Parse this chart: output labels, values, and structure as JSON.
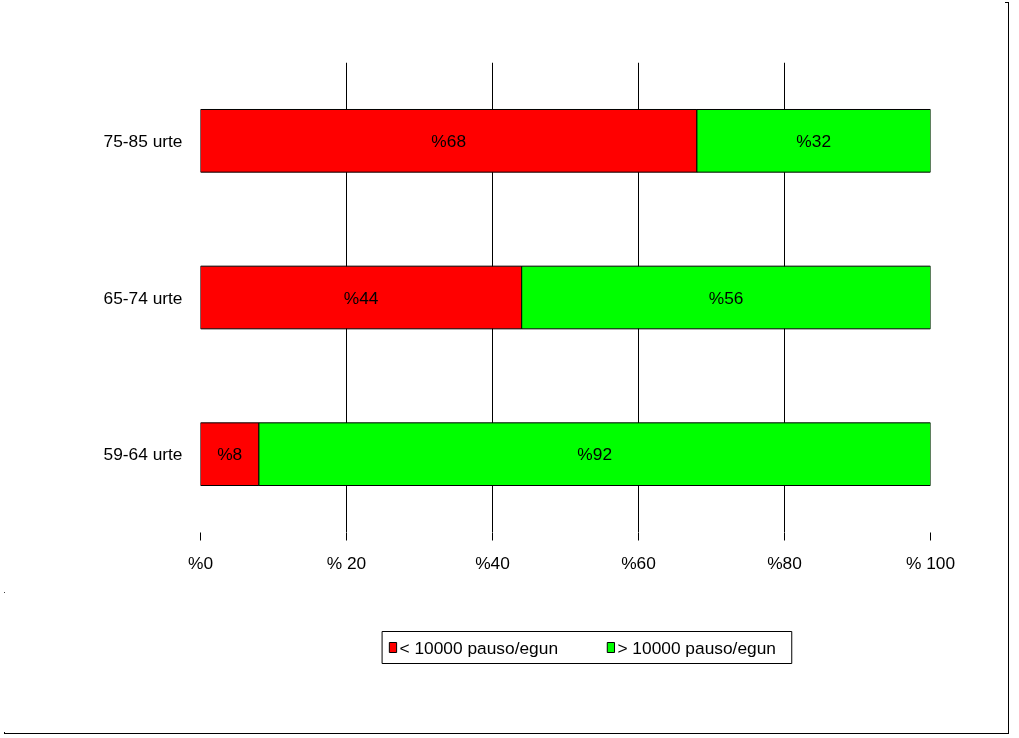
{
  "chart_data": {
    "type": "bar",
    "orientation": "horizontal",
    "stacked": true,
    "categories": [
      "75-85 urte",
      "65-74 urte",
      "59-64 urte"
    ],
    "series": [
      {
        "name": "< 10000 pauso/egun",
        "color": "#ff0000",
        "values": [
          68,
          44,
          8
        ],
        "value_labels": [
          "%68",
          "%44",
          "%8"
        ]
      },
      {
        "name": "> 10000 pauso/egun",
        "color": "#00ff00",
        "values": [
          32,
          56,
          92
        ],
        "value_labels": [
          "%32",
          "%56",
          "%92"
        ]
      }
    ],
    "xlim": [
      0,
      100
    ],
    "xticks": [
      {
        "value": 0,
        "label": "%0"
      },
      {
        "value": 20,
        "label": "% 20"
      },
      {
        "value": 40,
        "label": "%40"
      },
      {
        "value": 60,
        "label": "%60"
      },
      {
        "value": 80,
        "label": "%80"
      },
      {
        "value": 100,
        "label": "% 100"
      }
    ],
    "grid": "x",
    "legend": "bottom"
  }
}
